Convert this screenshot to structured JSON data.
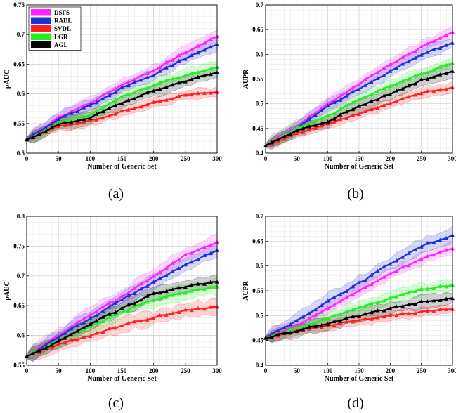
{
  "chart_data": [
    {
      "type": "line",
      "caption": "(a)",
      "xlabel": "Number of Generic Set",
      "ylabel": "pAUC",
      "xlim": [
        0,
        300
      ],
      "ylim": [
        0.5,
        0.75
      ],
      "xticks": [
        0,
        50,
        100,
        150,
        200,
        250,
        300
      ],
      "yticks": [
        0.5,
        0.55,
        0.6,
        0.65,
        0.7,
        0.75
      ],
      "ytick_labels": [
        "0.5",
        "0.55",
        "0.6",
        "0.65",
        "0.7",
        "0.75"
      ],
      "grid": true,
      "legend": "top-left",
      "x": [
        0,
        50,
        100,
        150,
        200,
        250,
        300
      ],
      "series": [
        {
          "name": "DSFS",
          "color": "#ff22ff",
          "values": [
            0.523,
            0.56,
            0.585,
            0.615,
            0.64,
            0.67,
            0.697
          ],
          "band": 0.01
        },
        {
          "name": "RADL",
          "color": "#1f2fd6",
          "values": [
            0.523,
            0.558,
            0.58,
            0.61,
            0.632,
            0.66,
            0.683
          ],
          "band": 0.01
        },
        {
          "name": "SVDL",
          "color": "#ff1f1f",
          "values": [
            0.523,
            0.545,
            0.555,
            0.57,
            0.585,
            0.598,
            0.603
          ],
          "band": 0.008
        },
        {
          "name": "LGR",
          "color": "#22ee22",
          "values": [
            0.523,
            0.55,
            0.565,
            0.595,
            0.615,
            0.632,
            0.645
          ],
          "band": 0.01
        },
        {
          "name": "AGL",
          "color": "#000000",
          "values": [
            0.523,
            0.548,
            0.56,
            0.585,
            0.605,
            0.622,
            0.636
          ],
          "band": 0.01
        }
      ]
    },
    {
      "type": "line",
      "caption": "(b)",
      "xlabel": "Number of Generic Set",
      "ylabel": "AUPR",
      "xlim": [
        0,
        300
      ],
      "ylim": [
        0.4,
        0.7
      ],
      "xticks": [
        0,
        50,
        100,
        150,
        200,
        250,
        300
      ],
      "yticks": [
        0.4,
        0.45,
        0.5,
        0.55,
        0.6,
        0.65,
        0.7
      ],
      "ytick_labels": [
        "0.4",
        "0.45",
        "0.5",
        "0.55",
        "0.6",
        "0.65",
        "0.7"
      ],
      "grid": true,
      "x": [
        0,
        50,
        100,
        150,
        200,
        250,
        300
      ],
      "series": [
        {
          "name": "DSFS",
          "color": "#ff22ff",
          "values": [
            0.415,
            0.455,
            0.5,
            0.54,
            0.58,
            0.615,
            0.645
          ],
          "band": 0.012
        },
        {
          "name": "RADL",
          "color": "#1f2fd6",
          "values": [
            0.415,
            0.45,
            0.495,
            0.53,
            0.565,
            0.6,
            0.623
          ],
          "band": 0.012
        },
        {
          "name": "SVDL",
          "color": "#ff1f1f",
          "values": [
            0.415,
            0.44,
            0.46,
            0.48,
            0.5,
            0.522,
            0.533
          ],
          "band": 0.01
        },
        {
          "name": "LGR",
          "color": "#22ee22",
          "values": [
            0.415,
            0.45,
            0.475,
            0.51,
            0.535,
            0.56,
            0.582
          ],
          "band": 0.012
        },
        {
          "name": "AGL",
          "color": "#000000",
          "values": [
            0.415,
            0.445,
            0.465,
            0.495,
            0.52,
            0.548,
            0.566
          ],
          "band": 0.012
        }
      ]
    },
    {
      "type": "line",
      "caption": "(c)",
      "xlabel": "Number of Generic Set",
      "ylabel": "pAUC",
      "xlim": [
        0,
        300
      ],
      "ylim": [
        0.55,
        0.8
      ],
      "xticks": [
        0,
        50,
        100,
        150,
        200,
        250,
        300
      ],
      "yticks": [
        0.55,
        0.6,
        0.65,
        0.7,
        0.75,
        0.8
      ],
      "ytick_labels": [
        "0.55",
        "0.6",
        "0.65",
        "0.7",
        "0.75",
        "0.8"
      ],
      "grid": true,
      "x": [
        0,
        50,
        100,
        150,
        200,
        250,
        300
      ],
      "series": [
        {
          "name": "DSFS",
          "color": "#ff22ff",
          "values": [
            0.565,
            0.6,
            0.635,
            0.665,
            0.7,
            0.735,
            0.757
          ],
          "band": 0.012
        },
        {
          "name": "RADL",
          "color": "#1f2fd6",
          "values": [
            0.565,
            0.598,
            0.628,
            0.66,
            0.69,
            0.72,
            0.743
          ],
          "band": 0.012
        },
        {
          "name": "SVDL",
          "color": "#ff1f1f",
          "values": [
            0.565,
            0.585,
            0.6,
            0.617,
            0.63,
            0.642,
            0.648
          ],
          "band": 0.012
        },
        {
          "name": "LGR",
          "color": "#22ee22",
          "values": [
            0.565,
            0.59,
            0.615,
            0.64,
            0.66,
            0.672,
            0.682
          ],
          "band": 0.012
        },
        {
          "name": "AGL",
          "color": "#000000",
          "values": [
            0.565,
            0.59,
            0.62,
            0.645,
            0.67,
            0.682,
            0.69
          ],
          "band": 0.012
        }
      ]
    },
    {
      "type": "line",
      "caption": "(d)",
      "xlabel": "Number of Generic Set",
      "ylabel": "AUPR",
      "xlim": [
        0,
        300
      ],
      "ylim": [
        0.4,
        0.7
      ],
      "xticks": [
        0,
        50,
        100,
        150,
        200,
        250,
        300
      ],
      "yticks": [
        0.4,
        0.45,
        0.5,
        0.55,
        0.6,
        0.65,
        0.7
      ],
      "ytick_labels": [
        "0.4",
        "0.45",
        "0.5",
        "0.55",
        "0.6",
        "0.65",
        "0.7"
      ],
      "grid": true,
      "x": [
        0,
        50,
        100,
        150,
        200,
        250,
        300
      ],
      "series": [
        {
          "name": "DSFS",
          "color": "#ff22ff",
          "values": [
            0.455,
            0.48,
            0.515,
            0.55,
            0.585,
            0.615,
            0.635
          ],
          "band": 0.012
        },
        {
          "name": "RADL",
          "color": "#1f2fd6",
          "values": [
            0.455,
            0.49,
            0.53,
            0.565,
            0.605,
            0.64,
            0.662
          ],
          "band": 0.014
        },
        {
          "name": "SVDL",
          "color": "#ff1f1f",
          "values": [
            0.455,
            0.47,
            0.48,
            0.49,
            0.5,
            0.508,
            0.513
          ],
          "band": 0.01
        },
        {
          "name": "LGR",
          "color": "#22ee22",
          "values": [
            0.455,
            0.475,
            0.495,
            0.515,
            0.535,
            0.552,
            0.562
          ],
          "band": 0.012
        },
        {
          "name": "AGL",
          "color": "#000000",
          "values": [
            0.455,
            0.47,
            0.485,
            0.5,
            0.515,
            0.527,
            0.535
          ],
          "band": 0.012
        }
      ]
    }
  ]
}
